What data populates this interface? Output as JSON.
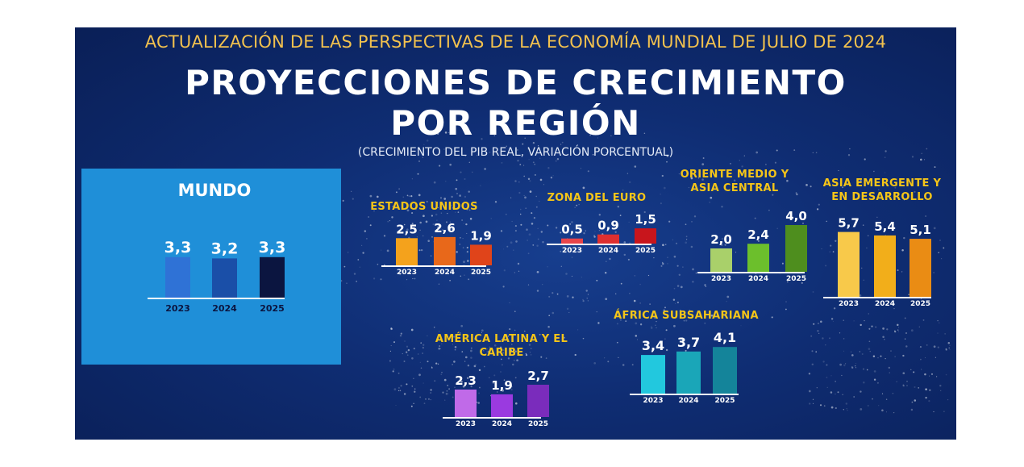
{
  "header": {
    "top_title": "ACTUALIZACIÓN DE LAS PERSPECTIVAS DE LA ECONOMÍA MUNDIAL DE JULIO DE 2024",
    "title_line1": "PROYECCIONES DE CRECIMIENTO",
    "title_line2": "POR REGIÓN",
    "subtitle": "(CRECIMIENTO DEL PIB REAL, VARIACIÓN PORCENTUAL)"
  },
  "colors": {
    "background": "#0f2d73",
    "world_panel": "#1f8fd8",
    "title_gold": "#f2c14e",
    "region_title": "#f5c518"
  },
  "chart_data": [
    {
      "type": "bar",
      "title": "MUNDO",
      "categories": [
        "2023",
        "2024",
        "2025"
      ],
      "values": [
        3.3,
        3.2,
        3.3
      ],
      "labels": [
        "3,3",
        "3,2",
        "3,3"
      ],
      "colors": [
        "#2f72d6",
        "#1a4fa8",
        "#0b1540"
      ]
    },
    {
      "type": "bar",
      "title": "ESTADOS UNIDOS",
      "categories": [
        "2023",
        "2024",
        "2025"
      ],
      "values": [
        2.5,
        2.6,
        1.9
      ],
      "labels": [
        "2,5",
        "2,6",
        "1,9"
      ],
      "colors": [
        "#f4a21c",
        "#e8681a",
        "#e0441a"
      ]
    },
    {
      "type": "bar",
      "title": "ZONA DEL EURO",
      "categories": [
        "2023",
        "2024",
        "2025"
      ],
      "values": [
        0.5,
        0.9,
        1.5
      ],
      "labels": [
        "0,5",
        "0,9",
        "1,5"
      ],
      "colors": [
        "#e8454a",
        "#de2f30",
        "#c8151c"
      ]
    },
    {
      "type": "bar",
      "title": "ORIENTE MEDIO Y ASIA CENTRAL",
      "categories": [
        "2023",
        "2024",
        "2025"
      ],
      "values": [
        2.0,
        2.4,
        4.0
      ],
      "labels": [
        "2,0",
        "2,4",
        "4,0"
      ],
      "colors": [
        "#a9d06a",
        "#6cbf2c",
        "#4e8e1e"
      ]
    },
    {
      "type": "bar",
      "title": "ASIA EMERGENTE Y EN DESARROLLO",
      "categories": [
        "2023",
        "2024",
        "2025"
      ],
      "values": [
        5.7,
        5.4,
        5.1
      ],
      "labels": [
        "5,7",
        "5,4",
        "5,1"
      ],
      "colors": [
        "#f8c94a",
        "#f2ae1a",
        "#ea8c14"
      ]
    },
    {
      "type": "bar",
      "title": "AMÉRICA LATINA Y EL CARIBE",
      "categories": [
        "2023",
        "2024",
        "2025"
      ],
      "values": [
        2.3,
        1.9,
        2.7
      ],
      "labels": [
        "2,3",
        "1,9",
        "2,7"
      ],
      "colors": [
        "#c06ae8",
        "#9a3ae0",
        "#7a2cbc"
      ]
    },
    {
      "type": "bar",
      "title": "ÁFRICA SUBSAHARIANA",
      "categories": [
        "2023",
        "2024",
        "2025"
      ],
      "values": [
        3.4,
        3.7,
        4.1
      ],
      "labels": [
        "3,4",
        "3,7",
        "4,1"
      ],
      "colors": [
        "#22c8de",
        "#1aa6b8",
        "#14849a"
      ]
    }
  ]
}
